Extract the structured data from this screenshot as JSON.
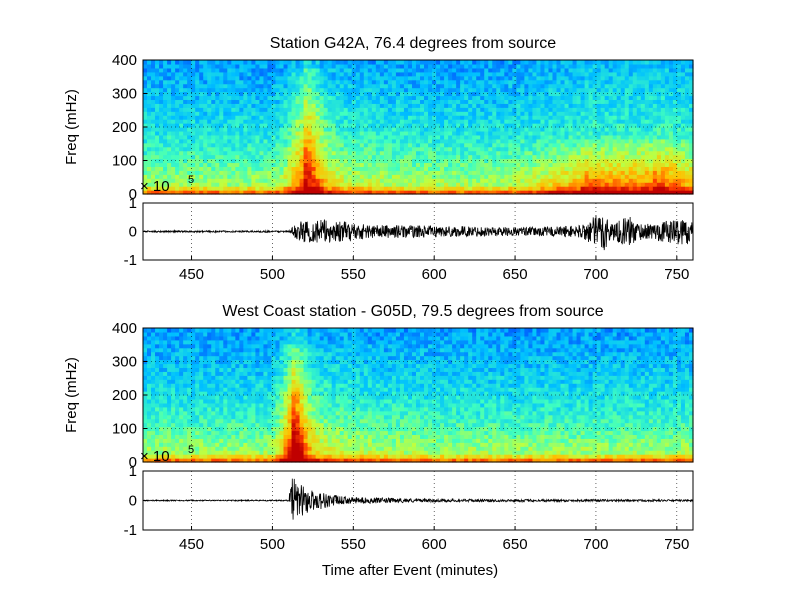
{
  "chart_data": [
    {
      "type": "heatmap",
      "title": "Station G42A, 76.4 degrees from source",
      "xlabel": "",
      "ylabel": "Freq (mHz)",
      "xlim": [
        420,
        760
      ],
      "ylim": [
        0,
        400
      ],
      "y_ticks": [
        0,
        100,
        200,
        300,
        400
      ],
      "grid": true,
      "colormap": [
        "#00008f",
        "#0040ff",
        "#00c0ff",
        "#40ffbf",
        "#bfff40",
        "#ffc000",
        "#ff4000",
        "#c00000"
      ],
      "events": [
        {
          "time": 520,
          "freq_max": 380,
          "strength": 0.6,
          "width": 10
        },
        {
          "time": 690,
          "freq_max": 160,
          "strength": 0.35,
          "width": 30
        },
        {
          "time": 735,
          "freq_max": 160,
          "strength": 0.35,
          "width": 25
        }
      ]
    },
    {
      "type": "line",
      "title": "",
      "ylabel": "",
      "xlabel": "",
      "xlim": [
        420,
        760
      ],
      "ylim": [
        -1,
        1
      ],
      "y_ticks": [
        -1,
        0,
        1
      ],
      "x_ticks": [
        450,
        500,
        550,
        600,
        650,
        700,
        750
      ],
      "y_exponent": "× 10",
      "y_exponent_power": "5",
      "grid": true,
      "series": [
        {
          "color": "#000000",
          "envelope": [
            {
              "x": 420,
              "amp": 0.03
            },
            {
              "x": 510,
              "amp": 0.03
            },
            {
              "x": 516,
              "amp": 0.35
            },
            {
              "x": 530,
              "amp": 0.45
            },
            {
              "x": 560,
              "amp": 0.25
            },
            {
              "x": 600,
              "amp": 0.2
            },
            {
              "x": 660,
              "amp": 0.15
            },
            {
              "x": 690,
              "amp": 0.22
            },
            {
              "x": 705,
              "amp": 0.75
            },
            {
              "x": 710,
              "amp": 0.3
            },
            {
              "x": 720,
              "amp": 0.55
            },
            {
              "x": 730,
              "amp": 0.25
            },
            {
              "x": 755,
              "amp": 0.5
            },
            {
              "x": 760,
              "amp": 0.35
            }
          ]
        }
      ]
    },
    {
      "type": "heatmap",
      "title": "West Coast station - G05D, 79.5 degrees from source",
      "xlabel": "",
      "ylabel": "Freq (mHz)",
      "xlim": [
        420,
        760
      ],
      "ylim": [
        0,
        400
      ],
      "y_ticks": [
        0,
        100,
        200,
        300,
        400
      ],
      "grid": true,
      "colormap": [
        "#00008f",
        "#0040ff",
        "#00c0ff",
        "#40ffbf",
        "#bfff40",
        "#ffc000",
        "#ff4000",
        "#c00000"
      ],
      "events": [
        {
          "time": 513,
          "freq_max": 350,
          "strength": 0.75,
          "width": 8
        }
      ]
    },
    {
      "type": "line",
      "title": "",
      "ylabel": "",
      "xlabel": "Time after Event (minutes)",
      "xlim": [
        420,
        760
      ],
      "ylim": [
        -1,
        1
      ],
      "y_ticks": [
        -1,
        0,
        1
      ],
      "x_ticks": [
        450,
        500,
        550,
        600,
        650,
        700,
        750
      ],
      "y_exponent": "× 10",
      "y_exponent_power": "5",
      "grid": true,
      "series": [
        {
          "color": "#000000",
          "envelope": [
            {
              "x": 420,
              "amp": 0.02
            },
            {
              "x": 510,
              "amp": 0.02
            },
            {
              "x": 512,
              "amp": 0.85
            },
            {
              "x": 516,
              "amp": 0.6
            },
            {
              "x": 525,
              "amp": 0.35
            },
            {
              "x": 545,
              "amp": 0.12
            },
            {
              "x": 600,
              "amp": 0.05
            },
            {
              "x": 760,
              "amp": 0.03
            }
          ]
        }
      ]
    }
  ]
}
